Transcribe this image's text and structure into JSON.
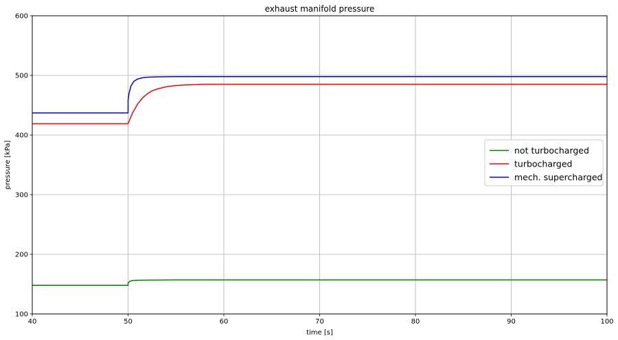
{
  "chart_data": {
    "type": "line",
    "title": "exhaust manifold pressure",
    "xlabel": "time [s]",
    "ylabel": "pressure [kPa]",
    "xlim": [
      40,
      100
    ],
    "ylim": [
      100,
      600
    ],
    "xticks": [
      40,
      50,
      60,
      70,
      80,
      90,
      100
    ],
    "yticks": [
      100,
      200,
      300,
      400,
      500,
      600
    ],
    "grid": true,
    "legend_position": "center-right",
    "series": [
      {
        "name": "not turbocharged",
        "color": "#008000",
        "x": [
          40,
          50,
          50,
          50.2,
          50.5,
          51,
          52,
          55,
          60,
          70,
          80,
          90,
          100
        ],
        "y": [
          148,
          148,
          152,
          155,
          156,
          156.5,
          156.8,
          157,
          157,
          157,
          157,
          157,
          157
        ]
      },
      {
        "name": "turbocharged",
        "color": "#ff0000",
        "x": [
          40,
          50,
          50.25,
          50.5,
          51,
          51.5,
          52,
          52.5,
          53,
          54,
          55,
          56,
          57,
          58,
          60,
          70,
          80,
          90,
          100
        ],
        "y": [
          419,
          419,
          429,
          438,
          452,
          462,
          469,
          474,
          477,
          481,
          483,
          484,
          484.5,
          485,
          485,
          485,
          485,
          485,
          485
        ]
      },
      {
        "name": "mech. supercharged",
        "color": "#0000ff",
        "x": [
          40,
          50,
          50,
          50.1,
          50.3,
          50.6,
          51,
          51.5,
          52,
          53,
          55,
          60,
          70,
          80,
          90,
          100
        ],
        "y": [
          437,
          437,
          458,
          470,
          482,
          490,
          494,
          496,
          497,
          497.5,
          498,
          498,
          498,
          498,
          498,
          498
        ]
      }
    ]
  }
}
